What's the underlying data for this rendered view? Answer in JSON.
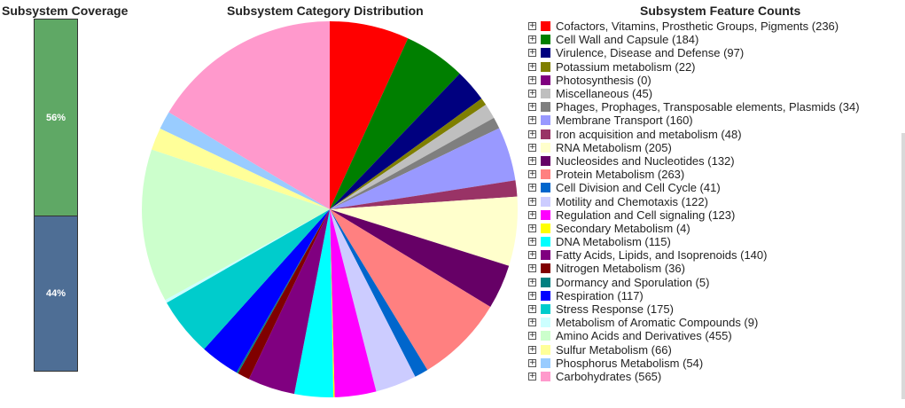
{
  "titles": {
    "coverage": "Subsystem Coverage",
    "pie": "Subsystem Category Distribution",
    "legend": "Subsystem Feature Counts"
  },
  "coverage": {
    "segments": [
      {
        "label": "56%",
        "fraction": 0.56,
        "color": "#5fa865"
      },
      {
        "label": "44%",
        "fraction": 0.44,
        "color": "#4e6e95"
      }
    ]
  },
  "legend_control": {
    "expander_symbol": "⊞"
  },
  "chart_data": {
    "type": "pie",
    "title": "Subsystem Category Distribution",
    "slices": [
      {
        "label": "Cofactors, Vitamins, Prosthetic Groups, Pigments",
        "value": 236,
        "color": "#ff0000"
      },
      {
        "label": "Cell Wall and Capsule",
        "value": 184,
        "color": "#007f00"
      },
      {
        "label": "Virulence, Disease and Defense",
        "value": 97,
        "color": "#00007f"
      },
      {
        "label": "Potassium metabolism",
        "value": 22,
        "color": "#7f7f00"
      },
      {
        "label": "Photosynthesis",
        "value": 0,
        "color": "#7f007f"
      },
      {
        "label": "Miscellaneous",
        "value": 45,
        "color": "#bfbfbf"
      },
      {
        "label": "Phages, Prophages, Transposable elements, Plasmids",
        "value": 34,
        "color": "#7f7f7f"
      },
      {
        "label": "Membrane Transport",
        "value": 160,
        "color": "#9999ff"
      },
      {
        "label": "Iron acquisition and metabolism",
        "value": 48,
        "color": "#993366"
      },
      {
        "label": "RNA Metabolism",
        "value": 205,
        "color": "#ffffcc"
      },
      {
        "label": "Nucleosides and Nucleotides",
        "value": 132,
        "color": "#660066"
      },
      {
        "label": "Protein Metabolism",
        "value": 263,
        "color": "#ff8080"
      },
      {
        "label": "Cell Division and Cell Cycle",
        "value": 41,
        "color": "#0066cc"
      },
      {
        "label": "Motility and Chemotaxis",
        "value": 122,
        "color": "#ccccff"
      },
      {
        "label": "Regulation and Cell signaling",
        "value": 123,
        "color": "#ff00ff"
      },
      {
        "label": "Secondary Metabolism",
        "value": 4,
        "color": "#ffff00"
      },
      {
        "label": "DNA Metabolism",
        "value": 115,
        "color": "#00ffff"
      },
      {
        "label": "Fatty Acids, Lipids, and Isoprenoids",
        "value": 140,
        "color": "#800080"
      },
      {
        "label": "Nitrogen Metabolism",
        "value": 36,
        "color": "#800000"
      },
      {
        "label": "Dormancy and Sporulation",
        "value": 5,
        "color": "#008080"
      },
      {
        "label": "Respiration",
        "value": 117,
        "color": "#0000ff"
      },
      {
        "label": "Stress Response",
        "value": 175,
        "color": "#00cccc"
      },
      {
        "label": "Metabolism of Aromatic Compounds",
        "value": 9,
        "color": "#ccffff"
      },
      {
        "label": "Amino Acids and Derivatives",
        "value": 455,
        "color": "#ccffcc"
      },
      {
        "label": "Sulfur Metabolism",
        "value": 66,
        "color": "#ffff99"
      },
      {
        "label": "Phosphorus Metabolism",
        "value": 54,
        "color": "#99ccff"
      },
      {
        "label": "Carbohydrates",
        "value": 565,
        "color": "#ff99cc"
      }
    ]
  }
}
